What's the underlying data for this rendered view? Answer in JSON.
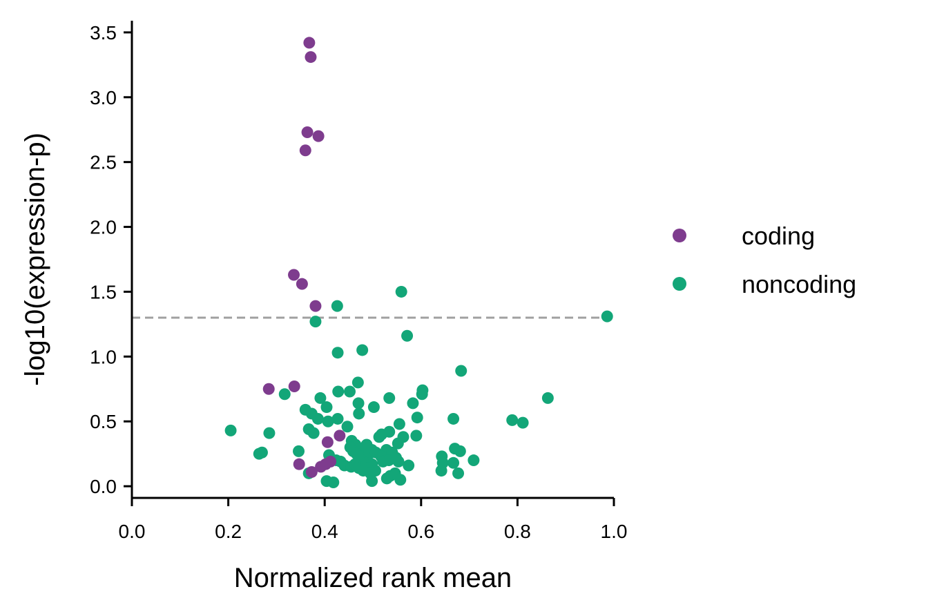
{
  "chart_data": {
    "type": "scatter",
    "title": "",
    "xlabel": "Normalized rank mean",
    "ylabel": "-log10(expression-p)",
    "xlim": [
      0.0,
      1.0
    ],
    "ylim": [
      -0.09,
      3.59
    ],
    "xticks": [
      0.0,
      0.2,
      0.4,
      0.6,
      0.8,
      1.0
    ],
    "xtick_labels": [
      "0.0",
      "0.2",
      "0.4",
      "0.6",
      "0.8",
      "1.0"
    ],
    "yticks": [
      0.0,
      0.5,
      1.0,
      1.5,
      2.0,
      2.5,
      3.0,
      3.5
    ],
    "ytick_labels": [
      "0.0",
      "0.5",
      "1.0",
      "1.5",
      "2.0",
      "2.5",
      "3.0",
      "3.5"
    ],
    "grid": false,
    "legend_position": "right",
    "threshold_line": {
      "y": 1.3,
      "style": "dashed",
      "color": "#a0a0a0"
    },
    "series": [
      {
        "name": "coding",
        "color": "#7e3c8e",
        "points": [
          {
            "x": 0.368,
            "y": 3.42
          },
          {
            "x": 0.371,
            "y": 3.31
          },
          {
            "x": 0.364,
            "y": 2.73
          },
          {
            "x": 0.387,
            "y": 2.7
          },
          {
            "x": 0.36,
            "y": 2.59
          },
          {
            "x": 0.336,
            "y": 1.63
          },
          {
            "x": 0.353,
            "y": 1.56
          },
          {
            "x": 0.381,
            "y": 1.39
          },
          {
            "x": 0.284,
            "y": 0.75
          },
          {
            "x": 0.337,
            "y": 0.77
          },
          {
            "x": 0.431,
            "y": 0.39
          },
          {
            "x": 0.406,
            "y": 0.34
          },
          {
            "x": 0.347,
            "y": 0.17
          },
          {
            "x": 0.392,
            "y": 0.15
          },
          {
            "x": 0.373,
            "y": 0.11
          },
          {
            "x": 0.412,
            "y": 0.19
          },
          {
            "x": 0.402,
            "y": 0.17
          }
        ]
      },
      {
        "name": "noncoding",
        "color": "#13a678",
        "points": [
          {
            "x": 0.559,
            "y": 1.5
          },
          {
            "x": 0.426,
            "y": 1.39
          },
          {
            "x": 0.986,
            "y": 1.31
          },
          {
            "x": 0.381,
            "y": 1.27
          },
          {
            "x": 0.571,
            "y": 1.16
          },
          {
            "x": 0.478,
            "y": 1.05
          },
          {
            "x": 0.427,
            "y": 1.03
          },
          {
            "x": 0.683,
            "y": 0.89
          },
          {
            "x": 0.469,
            "y": 0.8
          },
          {
            "x": 0.603,
            "y": 0.74
          },
          {
            "x": 0.602,
            "y": 0.71
          },
          {
            "x": 0.428,
            "y": 0.73
          },
          {
            "x": 0.452,
            "y": 0.73
          },
          {
            "x": 0.317,
            "y": 0.71
          },
          {
            "x": 0.391,
            "y": 0.68
          },
          {
            "x": 0.534,
            "y": 0.68
          },
          {
            "x": 0.863,
            "y": 0.68
          },
          {
            "x": 0.47,
            "y": 0.64
          },
          {
            "x": 0.583,
            "y": 0.64
          },
          {
            "x": 0.404,
            "y": 0.61
          },
          {
            "x": 0.502,
            "y": 0.61
          },
          {
            "x": 0.36,
            "y": 0.59
          },
          {
            "x": 0.373,
            "y": 0.56
          },
          {
            "x": 0.471,
            "y": 0.56
          },
          {
            "x": 0.386,
            "y": 0.52
          },
          {
            "x": 0.427,
            "y": 0.52
          },
          {
            "x": 0.407,
            "y": 0.5
          },
          {
            "x": 0.592,
            "y": 0.53
          },
          {
            "x": 0.667,
            "y": 0.52
          },
          {
            "x": 0.789,
            "y": 0.51
          },
          {
            "x": 0.811,
            "y": 0.49
          },
          {
            "x": 0.555,
            "y": 0.48
          },
          {
            "x": 0.447,
            "y": 0.46
          },
          {
            "x": 0.367,
            "y": 0.44
          },
          {
            "x": 0.377,
            "y": 0.41
          },
          {
            "x": 0.205,
            "y": 0.43
          },
          {
            "x": 0.285,
            "y": 0.41
          },
          {
            "x": 0.534,
            "y": 0.42
          },
          {
            "x": 0.518,
            "y": 0.4
          },
          {
            "x": 0.563,
            "y": 0.38
          },
          {
            "x": 0.59,
            "y": 0.39
          },
          {
            "x": 0.513,
            "y": 0.38
          },
          {
            "x": 0.552,
            "y": 0.33
          },
          {
            "x": 0.456,
            "y": 0.35
          },
          {
            "x": 0.464,
            "y": 0.32
          },
          {
            "x": 0.487,
            "y": 0.32
          },
          {
            "x": 0.479,
            "y": 0.29
          },
          {
            "x": 0.453,
            "y": 0.3
          },
          {
            "x": 0.459,
            "y": 0.27
          },
          {
            "x": 0.498,
            "y": 0.28
          },
          {
            "x": 0.466,
            "y": 0.25
          },
          {
            "x": 0.476,
            "y": 0.23
          },
          {
            "x": 0.492,
            "y": 0.25
          },
          {
            "x": 0.506,
            "y": 0.26
          },
          {
            "x": 0.528,
            "y": 0.28
          },
          {
            "x": 0.54,
            "y": 0.26
          },
          {
            "x": 0.517,
            "y": 0.23
          },
          {
            "x": 0.27,
            "y": 0.26
          },
          {
            "x": 0.264,
            "y": 0.25
          },
          {
            "x": 0.346,
            "y": 0.27
          },
          {
            "x": 0.409,
            "y": 0.24
          },
          {
            "x": 0.424,
            "y": 0.2
          },
          {
            "x": 0.433,
            "y": 0.19
          },
          {
            "x": 0.441,
            "y": 0.16
          },
          {
            "x": 0.455,
            "y": 0.15
          },
          {
            "x": 0.463,
            "y": 0.17
          },
          {
            "x": 0.471,
            "y": 0.14
          },
          {
            "x": 0.486,
            "y": 0.18
          },
          {
            "x": 0.498,
            "y": 0.17
          },
          {
            "x": 0.49,
            "y": 0.14
          },
          {
            "x": 0.505,
            "y": 0.12
          },
          {
            "x": 0.521,
            "y": 0.19
          },
          {
            "x": 0.533,
            "y": 0.2
          },
          {
            "x": 0.548,
            "y": 0.22
          },
          {
            "x": 0.553,
            "y": 0.19
          },
          {
            "x": 0.574,
            "y": 0.16
          },
          {
            "x": 0.48,
            "y": 0.12
          },
          {
            "x": 0.495,
            "y": 0.1
          },
          {
            "x": 0.536,
            "y": 0.08
          },
          {
            "x": 0.546,
            "y": 0.1
          },
          {
            "x": 0.529,
            "y": 0.06
          },
          {
            "x": 0.498,
            "y": 0.04
          },
          {
            "x": 0.557,
            "y": 0.05
          },
          {
            "x": 0.404,
            "y": 0.04
          },
          {
            "x": 0.418,
            "y": 0.03
          },
          {
            "x": 0.367,
            "y": 0.1
          },
          {
            "x": 0.643,
            "y": 0.23
          },
          {
            "x": 0.645,
            "y": 0.18
          },
          {
            "x": 0.667,
            "y": 0.18
          },
          {
            "x": 0.67,
            "y": 0.29
          },
          {
            "x": 0.681,
            "y": 0.27
          },
          {
            "x": 0.709,
            "y": 0.2
          },
          {
            "x": 0.642,
            "y": 0.12
          },
          {
            "x": 0.677,
            "y": 0.1
          }
        ]
      }
    ]
  }
}
